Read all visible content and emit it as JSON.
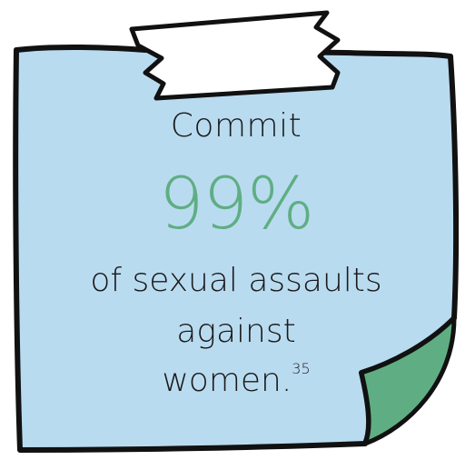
{
  "colors": {
    "note_fill": "#b9dbf0",
    "note_outline": "#111111",
    "curl_fill": "#5fae83",
    "tape_fill": "#ffffff",
    "stat_color": "#5fae83"
  },
  "note": {
    "intro": "Commit",
    "stat": "99%",
    "line1": "of sexual assaults",
    "line2": "against",
    "line3": "women.",
    "footnote": "35"
  }
}
